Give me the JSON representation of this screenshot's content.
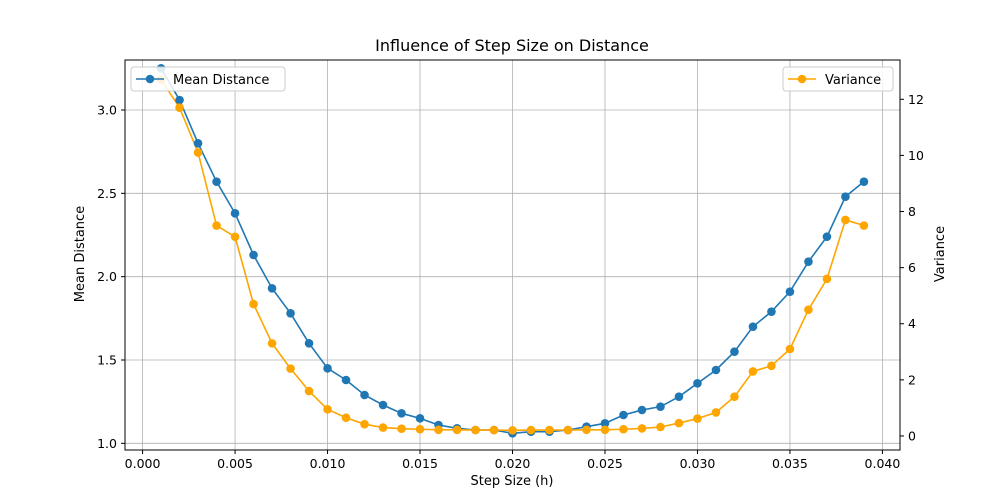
{
  "chart_data": {
    "type": "line",
    "title": "Influence of Step Size on Distance",
    "xlabel": "Step Size (h)",
    "ylabel_left": "Mean Distance",
    "ylabel_right": "Variance",
    "xlim": [
      -0.00095,
      0.04095
    ],
    "ylim_left": [
      0.96,
      3.3
    ],
    "ylim_right": [
      -0.5,
      13.4
    ],
    "x_ticks": [
      0.0,
      0.005,
      0.01,
      0.015,
      0.02,
      0.025,
      0.03,
      0.035,
      0.04
    ],
    "x_tick_labels": [
      "0.000",
      "0.005",
      "0.010",
      "0.015",
      "0.020",
      "0.025",
      "0.030",
      "0.035",
      "0.040"
    ],
    "y_left_ticks": [
      1.0,
      1.5,
      2.0,
      2.5,
      3.0
    ],
    "y_left_tick_labels": [
      "1.0",
      "1.5",
      "2.0",
      "2.5",
      "3.0"
    ],
    "y_right_ticks": [
      0,
      2,
      4,
      6,
      8,
      10,
      12
    ],
    "y_right_tick_labels": [
      "0",
      "2",
      "4",
      "6",
      "8",
      "10",
      "12"
    ],
    "grid": true,
    "x": [
      0.001,
      0.002,
      0.003,
      0.004,
      0.005,
      0.006,
      0.007,
      0.008,
      0.009,
      0.01,
      0.011,
      0.012,
      0.013,
      0.014,
      0.015,
      0.016,
      0.017,
      0.018,
      0.019,
      0.02,
      0.021,
      0.022,
      0.023,
      0.024,
      0.025,
      0.026,
      0.027,
      0.028,
      0.029,
      0.03,
      0.031,
      0.032,
      0.033,
      0.034,
      0.035,
      0.036,
      0.037,
      0.038,
      0.039
    ],
    "series": [
      {
        "name": "Mean Distance",
        "axis": "left",
        "color": "#1f77b4",
        "legend_position": "upper-left",
        "values": [
          3.25,
          3.06,
          2.8,
          2.57,
          2.38,
          2.13,
          1.93,
          1.78,
          1.6,
          1.45,
          1.38,
          1.29,
          1.23,
          1.18,
          1.15,
          1.11,
          1.09,
          1.08,
          1.08,
          1.06,
          1.07,
          1.07,
          1.08,
          1.1,
          1.12,
          1.17,
          1.2,
          1.22,
          1.28,
          1.36,
          1.44,
          1.55,
          1.7,
          1.79,
          1.91,
          2.09,
          2.24,
          2.48,
          2.57
        ]
      },
      {
        "name": "Variance",
        "axis": "right",
        "color": "#ffa500",
        "legend_position": "upper-right",
        "values": [
          12.7,
          11.7,
          10.1,
          7.5,
          7.1,
          4.7,
          3.3,
          2.4,
          1.6,
          0.95,
          0.65,
          0.42,
          0.3,
          0.26,
          0.24,
          0.22,
          0.22,
          0.21,
          0.21,
          0.2,
          0.21,
          0.21,
          0.21,
          0.22,
          0.22,
          0.24,
          0.27,
          0.32,
          0.46,
          0.62,
          0.84,
          1.4,
          2.3,
          2.5,
          3.1,
          4.5,
          5.6,
          7.7,
          7.5
        ]
      }
    ]
  }
}
